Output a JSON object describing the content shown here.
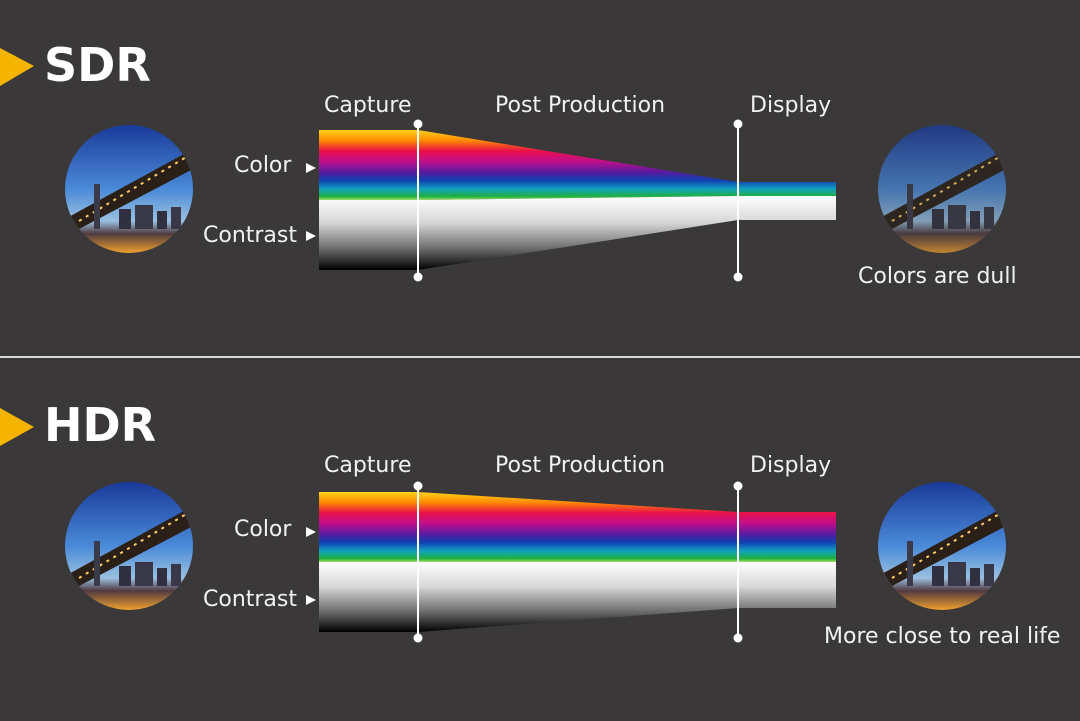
{
  "sections": [
    {
      "title": "SDR",
      "stages": [
        "Capture",
        "Post Production",
        "Display"
      ],
      "row_labels": [
        "Color",
        "Contrast"
      ],
      "result": "Colors are dull"
    },
    {
      "title": "HDR",
      "stages": [
        "Capture",
        "Post Production",
        "Display"
      ],
      "row_labels": [
        "Color",
        "Contrast"
      ],
      "result": "More close to real life"
    }
  ],
  "colors": {
    "background": "#3a3839",
    "accent": "#f5b400",
    "divider": "#d8d8d8"
  },
  "icons": [
    "arrow-marker-icon",
    "bridge-photo-icon"
  ]
}
